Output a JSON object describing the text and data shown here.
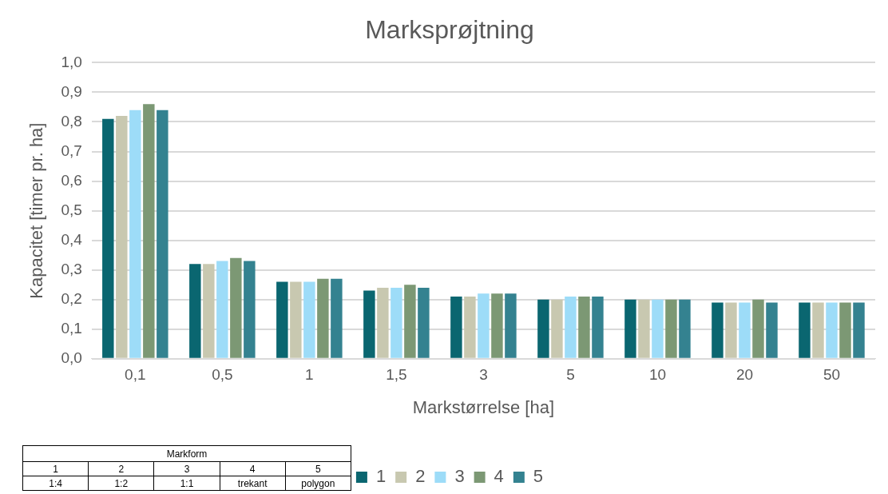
{
  "chart_data": {
    "type": "bar",
    "title": "Marksprøjtning",
    "xlabel": "Markstørrelse [ha]",
    "ylabel": "Kapacitet [timer pr. ha]",
    "categories": [
      "0,1",
      "0,5",
      "1",
      "1,5",
      "3",
      "5",
      "10",
      "20",
      "50"
    ],
    "series": [
      {
        "name": "1",
        "color": "#0a6670",
        "values": [
          0.81,
          0.32,
          0.26,
          0.23,
          0.21,
          0.2,
          0.2,
          0.19,
          0.19
        ]
      },
      {
        "name": "2",
        "color": "#c8c8b0",
        "values": [
          0.82,
          0.32,
          0.26,
          0.24,
          0.21,
          0.2,
          0.2,
          0.19,
          0.19
        ]
      },
      {
        "name": "3",
        "color": "#9ddcf8",
        "values": [
          0.84,
          0.33,
          0.26,
          0.24,
          0.22,
          0.21,
          0.2,
          0.19,
          0.19
        ]
      },
      {
        "name": "4",
        "color": "#7c9874",
        "values": [
          0.86,
          0.34,
          0.27,
          0.25,
          0.22,
          0.21,
          0.2,
          0.2,
          0.19
        ]
      },
      {
        "name": "5",
        "color": "#348290",
        "values": [
          0.84,
          0.33,
          0.27,
          0.24,
          0.22,
          0.21,
          0.2,
          0.19,
          0.19
        ]
      }
    ],
    "ylim": [
      0,
      1
    ],
    "yticks": [
      {
        "value": 0,
        "label": "0,0"
      },
      {
        "value": 0.1,
        "label": "0,1"
      },
      {
        "value": 0.2,
        "label": "0,2"
      },
      {
        "value": 0.3,
        "label": "0,3"
      },
      {
        "value": 0.4,
        "label": "0,4"
      },
      {
        "value": 0.5,
        "label": "0,5"
      },
      {
        "value": 0.6,
        "label": "0,6"
      },
      {
        "value": 0.7,
        "label": "0,7"
      },
      {
        "value": 0.8,
        "label": "0,8"
      },
      {
        "value": 0.9,
        "label": "0,9"
      },
      {
        "value": 1,
        "label": "1,0"
      }
    ],
    "grid": "y",
    "legend": "bottom",
    "annotations": [
      "Markform",
      "1:4",
      "1:2",
      "1:1",
      "trekant",
      "polygon"
    ]
  }
}
